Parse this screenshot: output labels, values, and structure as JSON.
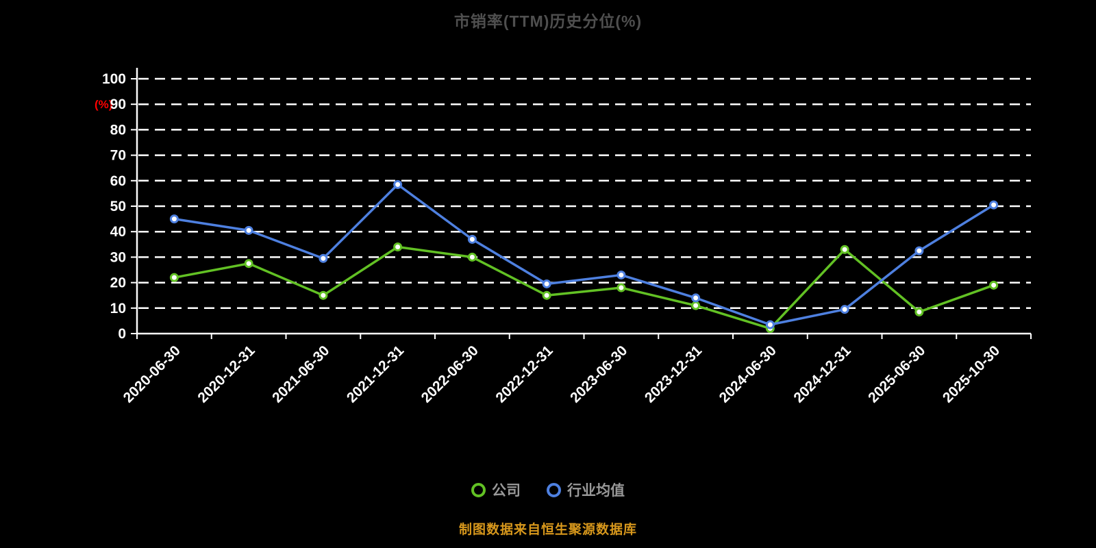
{
  "title": "市销率(TTM)历史分位(%)",
  "y_axis_unit_label": "(%)",
  "footer_note": "制图数据来自恒生聚源数据库",
  "colors": {
    "background": "#000000",
    "company_green": "#62c124",
    "industry_blue": "#4e80e0",
    "axis_white": "#ffffff",
    "title_gray": "#4f4f4f",
    "legend_text_gray": "#999999",
    "unit_red": "#ff0000",
    "footer_orange": "#d8981c"
  },
  "legend": {
    "items": [
      {
        "id": "company",
        "label": "公司",
        "color": "#62c124"
      },
      {
        "id": "industry-average",
        "label": "行业均值",
        "color": "#4e80e0"
      }
    ]
  },
  "chart_data": {
    "type": "line",
    "title": "市销率(TTM)历史分位(%)",
    "xlabel": "",
    "ylabel": "(%)",
    "ylim": [
      0,
      100
    ],
    "y_ticks": [
      0,
      10,
      20,
      30,
      40,
      50,
      60,
      70,
      80,
      90,
      100
    ],
    "grid": "horizontal-dashed",
    "legend_position": "bottom",
    "categories": [
      "2020-06-30",
      "2020-12-31",
      "2021-06-30",
      "2021-12-31",
      "2022-06-30",
      "2022-12-31",
      "2023-06-30",
      "2023-12-31",
      "2024-06-30",
      "2024-12-31",
      "2025-06-30",
      "2025-10-30"
    ],
    "series": [
      {
        "name": "公司",
        "color": "#62c124",
        "values": [
          22,
          27.5,
          15,
          34,
          30,
          15,
          18,
          11,
          2,
          33,
          8.5,
          19
        ]
      },
      {
        "name": "行业均值",
        "color": "#4e80e0",
        "values": [
          45,
          40.5,
          29.5,
          58.5,
          37,
          19.5,
          23,
          14,
          3.5,
          9.5,
          32.5,
          50.5
        ]
      }
    ]
  }
}
